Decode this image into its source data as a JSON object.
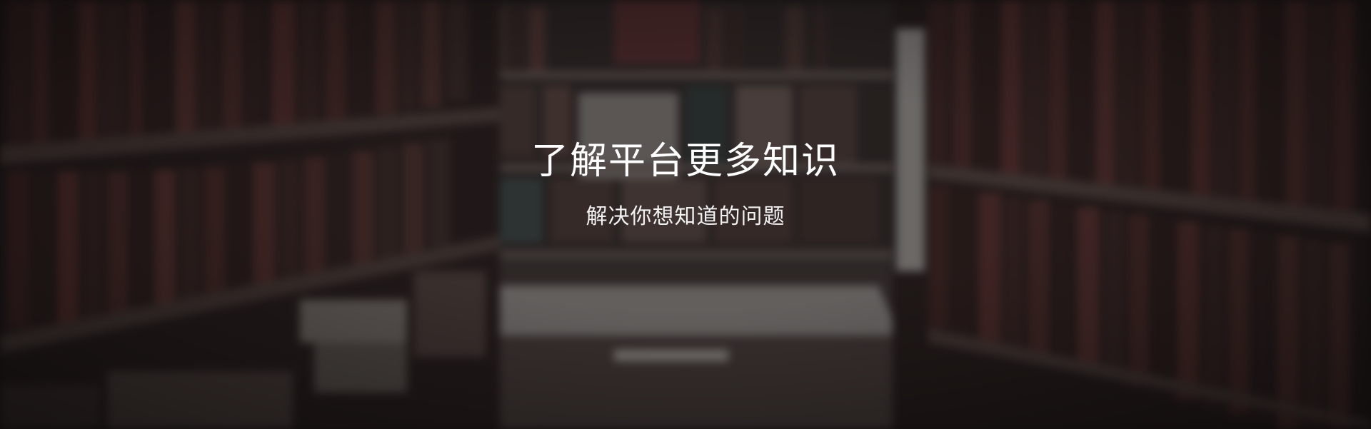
{
  "banner": {
    "background_description_icon": "library-bookshelves-photo",
    "headline": "了解平台更多知识",
    "subheadline": "解决你想知道的问题",
    "text_color": "#ffffff"
  }
}
